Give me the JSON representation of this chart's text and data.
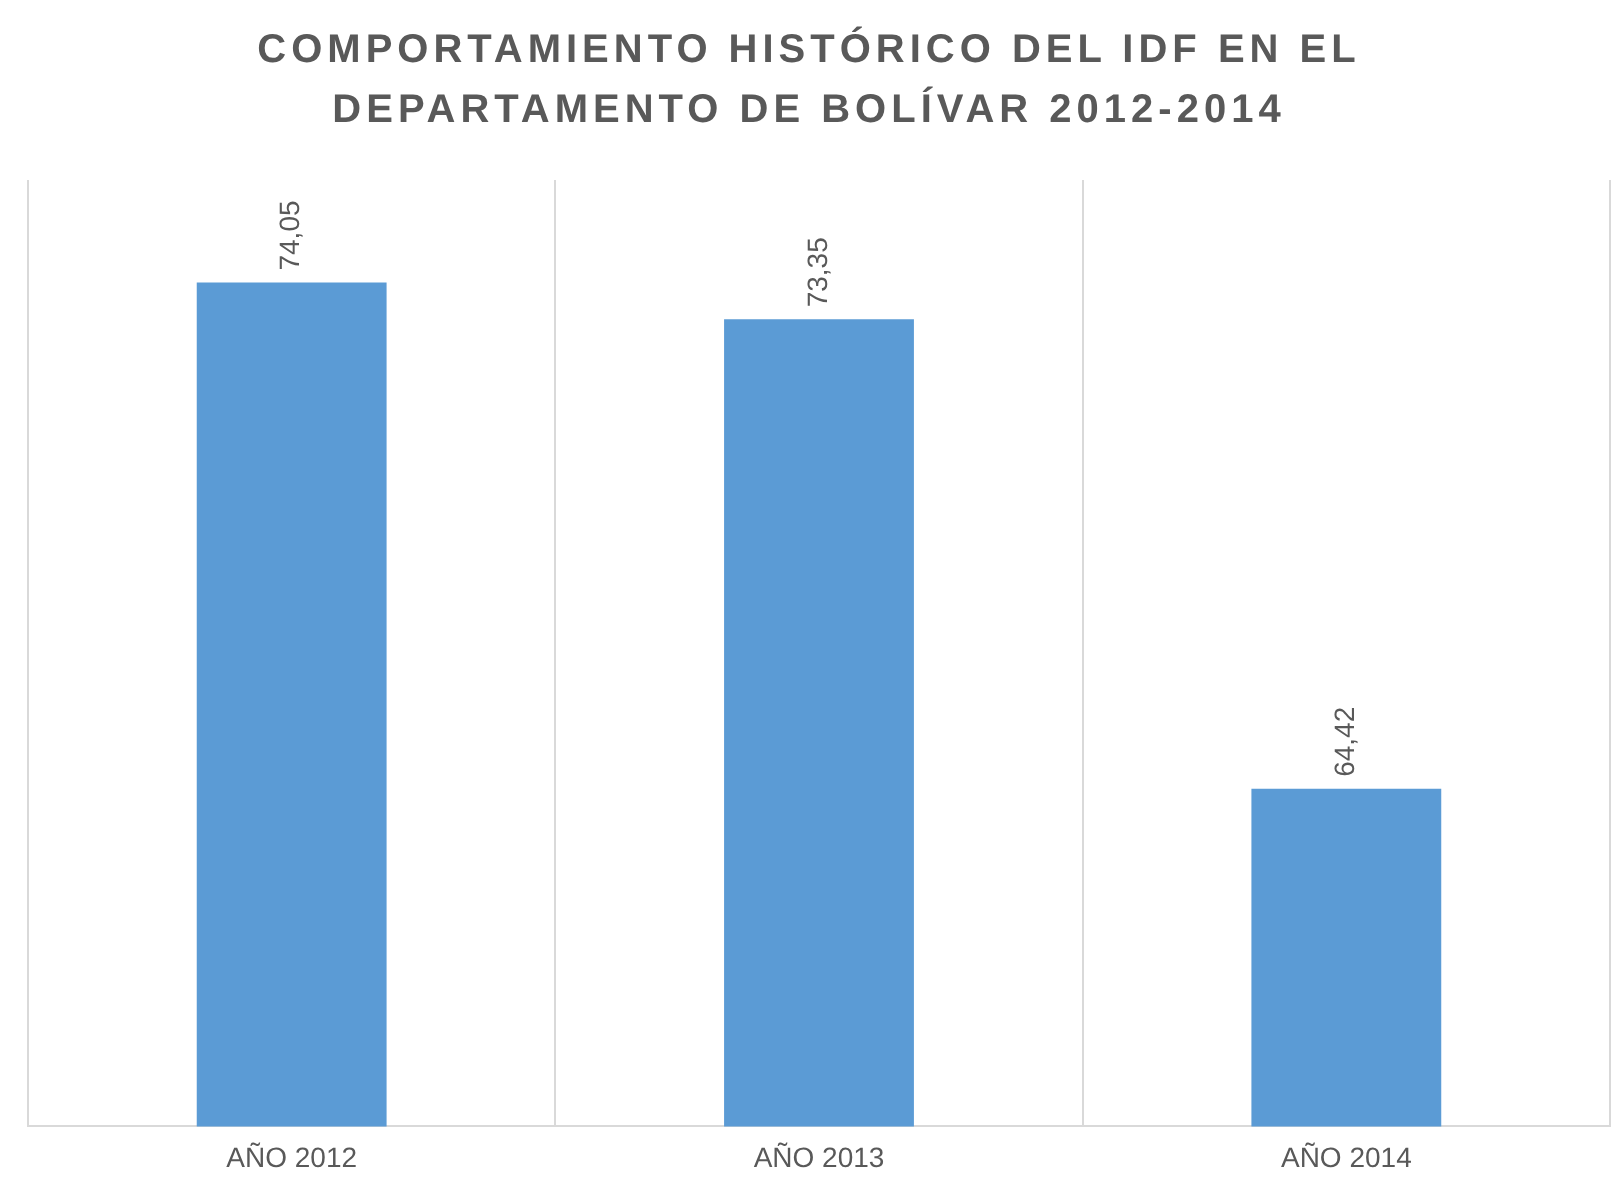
{
  "chart_data": {
    "type": "bar",
    "title": "COMPORTAMIENTO HISTÓRICO DEL IDF EN EL DEPARTAMENTO DE BOLÍVAR 2012-2014",
    "categories": [
      "AÑO 2012",
      "AÑO 2013",
      "AÑO 2014"
    ],
    "values": [
      74.05,
      73.35,
      64.42
    ],
    "value_labels": [
      "74,05",
      "73,35",
      "64,42"
    ],
    "color": "#5b9bd5",
    "ylim": [
      58,
      76
    ],
    "grid": "x",
    "legend": false
  }
}
